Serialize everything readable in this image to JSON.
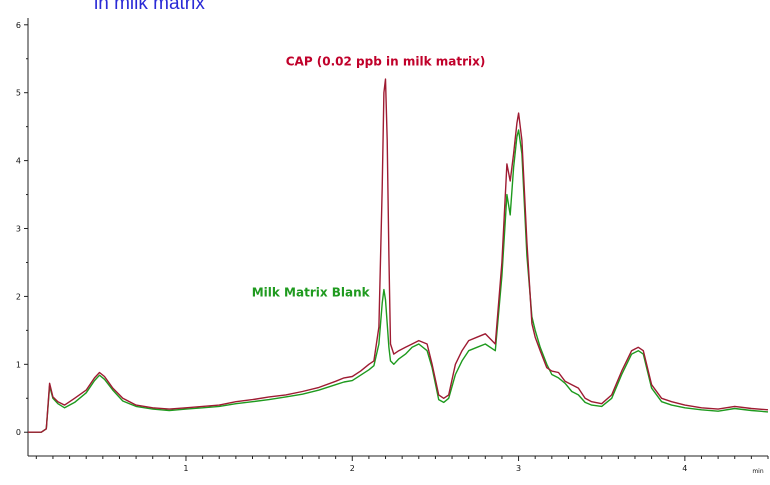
{
  "caption": {
    "text": "in milk matrix",
    "color": "#2a2ad6"
  },
  "chart_data": {
    "type": "line",
    "title": "",
    "xlabel": "min",
    "ylabel": "",
    "xlim": [
      0.05,
      4.5
    ],
    "ylim": [
      -0.35,
      6.1
    ],
    "x_ticks": [
      1,
      2,
      3,
      4
    ],
    "y_ticks": [
      0,
      1,
      2,
      3,
      4,
      5,
      6
    ],
    "grid": false,
    "annotations": [
      {
        "text": "CAP (0.02 ppb in milk matrix)",
        "series": "CAP",
        "x": 2.2,
        "y": 5.4,
        "color": "#c0002a"
      },
      {
        "text": "Milk Matrix Blank",
        "series": "Blank",
        "x": 1.75,
        "y": 2.0,
        "color": "#1f9a1f"
      }
    ],
    "series": [
      {
        "name": "CAP (0.02 ppb in milk matrix)",
        "color": "#9e1b32",
        "x": [
          0.05,
          0.13,
          0.16,
          0.18,
          0.2,
          0.23,
          0.27,
          0.33,
          0.4,
          0.45,
          0.48,
          0.51,
          0.56,
          0.62,
          0.7,
          0.8,
          0.9,
          1.0,
          1.1,
          1.2,
          1.3,
          1.4,
          1.5,
          1.6,
          1.7,
          1.8,
          1.9,
          1.95,
          2.0,
          2.05,
          2.1,
          2.13,
          2.16,
          2.18,
          2.19,
          2.2,
          2.21,
          2.22,
          2.23,
          2.25,
          2.28,
          2.32,
          2.36,
          2.4,
          2.45,
          2.48,
          2.52,
          2.55,
          2.58,
          2.62,
          2.66,
          2.7,
          2.75,
          2.8,
          2.86,
          2.9,
          2.93,
          2.95,
          2.97,
          2.99,
          3.0,
          3.02,
          3.05,
          3.08,
          3.1,
          3.13,
          3.17,
          3.2,
          3.24,
          3.28,
          3.32,
          3.36,
          3.4,
          3.44,
          3.5,
          3.56,
          3.62,
          3.68,
          3.72,
          3.75,
          3.8,
          3.86,
          3.92,
          4.0,
          4.1,
          4.2,
          4.3,
          4.4,
          4.5
        ],
        "values": [
          0.0,
          0.0,
          0.05,
          0.72,
          0.52,
          0.45,
          0.4,
          0.5,
          0.62,
          0.8,
          0.88,
          0.82,
          0.65,
          0.5,
          0.4,
          0.36,
          0.34,
          0.36,
          0.38,
          0.4,
          0.45,
          0.48,
          0.52,
          0.55,
          0.6,
          0.66,
          0.75,
          0.8,
          0.82,
          0.9,
          1.0,
          1.05,
          1.55,
          3.6,
          5.0,
          5.2,
          4.3,
          2.6,
          1.3,
          1.15,
          1.2,
          1.25,
          1.3,
          1.35,
          1.3,
          1.0,
          0.55,
          0.5,
          0.55,
          1.0,
          1.2,
          1.35,
          1.4,
          1.45,
          1.3,
          2.5,
          3.95,
          3.7,
          4.1,
          4.55,
          4.7,
          4.3,
          2.8,
          1.6,
          1.4,
          1.2,
          0.95,
          0.9,
          0.88,
          0.75,
          0.7,
          0.65,
          0.5,
          0.45,
          0.42,
          0.55,
          0.9,
          1.2,
          1.25,
          1.2,
          0.7,
          0.5,
          0.45,
          0.4,
          0.36,
          0.34,
          0.38,
          0.35,
          0.33
        ]
      },
      {
        "name": "Milk Matrix Blank",
        "color": "#1e9a1e",
        "x": [
          0.05,
          0.13,
          0.16,
          0.18,
          0.2,
          0.23,
          0.27,
          0.33,
          0.4,
          0.45,
          0.48,
          0.51,
          0.56,
          0.62,
          0.7,
          0.8,
          0.9,
          1.0,
          1.1,
          1.2,
          1.3,
          1.4,
          1.5,
          1.6,
          1.7,
          1.8,
          1.9,
          1.95,
          2.0,
          2.05,
          2.1,
          2.13,
          2.16,
          2.18,
          2.19,
          2.2,
          2.21,
          2.22,
          2.23,
          2.25,
          2.28,
          2.32,
          2.36,
          2.4,
          2.45,
          2.48,
          2.52,
          2.55,
          2.58,
          2.62,
          2.66,
          2.7,
          2.75,
          2.8,
          2.86,
          2.9,
          2.93,
          2.95,
          2.97,
          2.99,
          3.0,
          3.02,
          3.05,
          3.08,
          3.1,
          3.13,
          3.17,
          3.2,
          3.24,
          3.28,
          3.32,
          3.36,
          3.4,
          3.44,
          3.5,
          3.56,
          3.62,
          3.68,
          3.72,
          3.75,
          3.8,
          3.86,
          3.92,
          4.0,
          4.1,
          4.2,
          4.3,
          4.4,
          4.5
        ],
        "values": [
          0.0,
          0.0,
          0.05,
          0.68,
          0.5,
          0.42,
          0.36,
          0.44,
          0.58,
          0.76,
          0.84,
          0.78,
          0.62,
          0.46,
          0.38,
          0.34,
          0.32,
          0.34,
          0.36,
          0.38,
          0.42,
          0.45,
          0.48,
          0.52,
          0.56,
          0.62,
          0.7,
          0.74,
          0.76,
          0.84,
          0.92,
          0.98,
          1.3,
          1.9,
          2.1,
          1.95,
          1.6,
          1.25,
          1.05,
          1.0,
          1.08,
          1.15,
          1.25,
          1.3,
          1.2,
          0.95,
          0.48,
          0.44,
          0.5,
          0.85,
          1.05,
          1.2,
          1.25,
          1.3,
          1.2,
          2.3,
          3.5,
          3.2,
          3.9,
          4.35,
          4.45,
          4.1,
          2.6,
          1.7,
          1.5,
          1.25,
          1.0,
          0.85,
          0.8,
          0.72,
          0.6,
          0.55,
          0.44,
          0.4,
          0.38,
          0.5,
          0.85,
          1.15,
          1.2,
          1.15,
          0.65,
          0.45,
          0.4,
          0.36,
          0.33,
          0.31,
          0.35,
          0.32,
          0.3
        ]
      }
    ]
  }
}
